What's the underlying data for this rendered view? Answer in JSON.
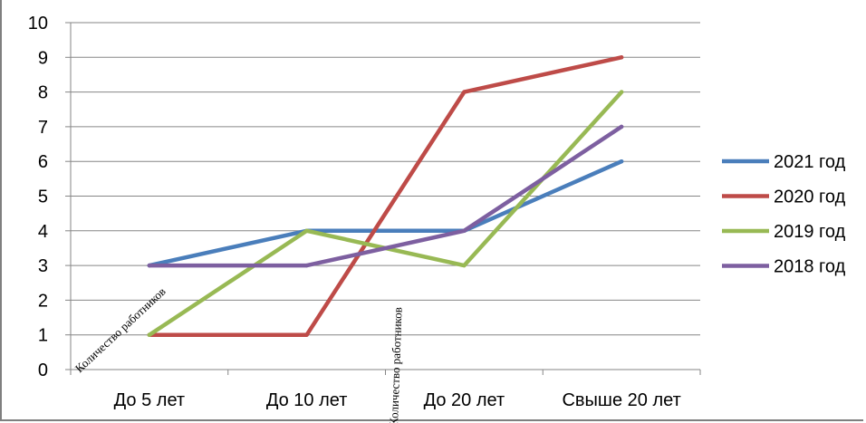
{
  "chart_data": {
    "type": "line",
    "categories": [
      "До 5 лет",
      "До 10 лет",
      "До 20 лет",
      "Свыше 20 лет"
    ],
    "series": [
      {
        "name": "2021 год",
        "values": [
          3,
          4,
          4,
          6
        ],
        "color": "#4a7ebb"
      },
      {
        "name": "2020 год",
        "values": [
          1,
          1,
          8,
          9
        ],
        "color": "#be4b48"
      },
      {
        "name": "2019 год",
        "values": [
          1,
          4,
          3,
          8
        ],
        "color": "#98b954"
      },
      {
        "name": "2018 год",
        "values": [
          3,
          3,
          4,
          7
        ],
        "color": "#7d5fa0"
      }
    ],
    "ylim": [
      0,
      10
    ],
    "yticks": [
      0,
      1,
      2,
      3,
      4,
      5,
      6,
      7,
      8,
      9,
      10
    ],
    "grid": true,
    "legend": "right",
    "annotations": [
      {
        "text": "Количество работников"
      },
      {
        "text": "Количество работников"
      }
    ]
  }
}
